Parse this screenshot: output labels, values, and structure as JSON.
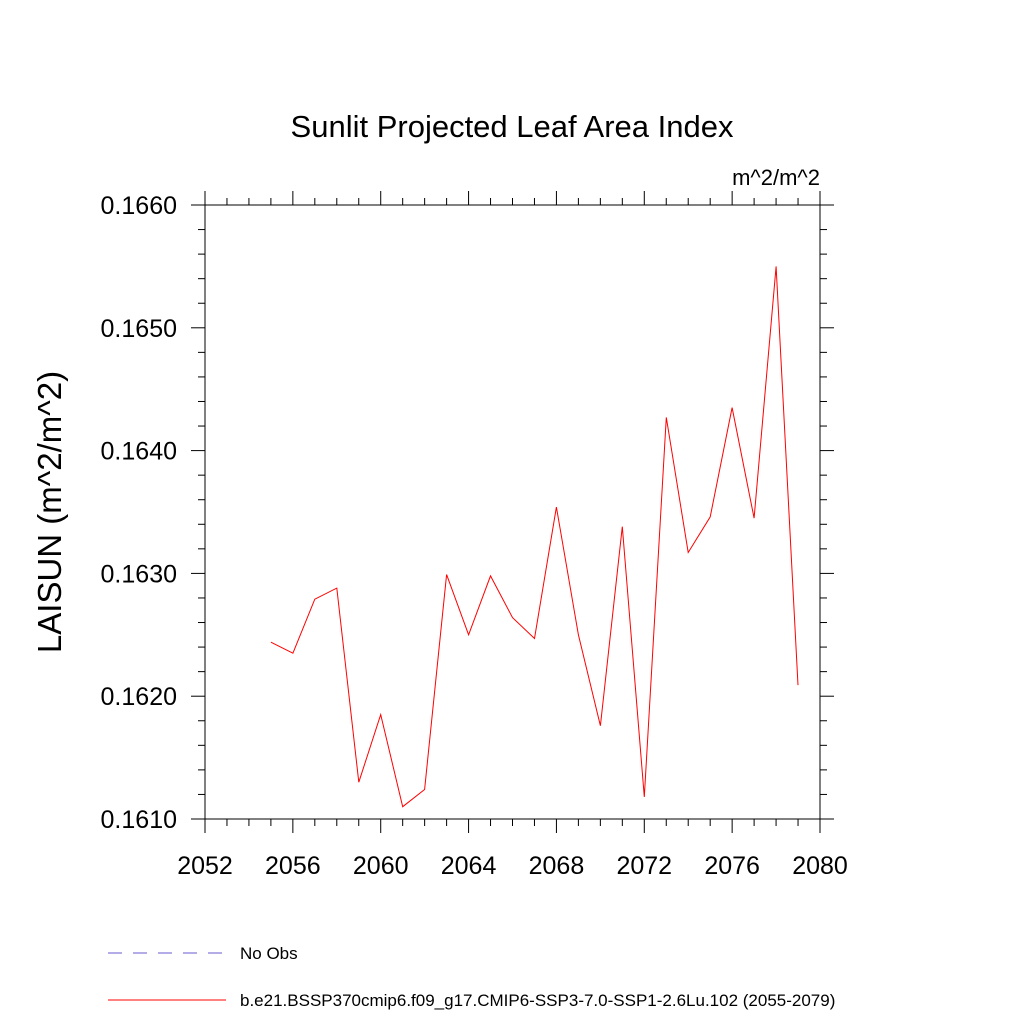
{
  "chart_data": {
    "type": "line",
    "title": "Sunlit Projected Leaf Area Index",
    "units": "m^2/m^2",
    "ylabel": "LAISUN  (m^2/m^2)",
    "xlabel": "",
    "xlim": [
      2052,
      2080
    ],
    "ylim": [
      0.161,
      0.166
    ],
    "xticks": [
      2052,
      2056,
      2060,
      2064,
      2068,
      2072,
      2076,
      2080
    ],
    "xtick_labels": [
      "2052",
      "2056",
      "2060",
      "2064",
      "2068",
      "2072",
      "2076",
      "2080"
    ],
    "yticks": [
      0.161,
      0.162,
      0.163,
      0.164,
      0.165,
      0.166
    ],
    "ytick_labels": [
      "0.1610",
      "0.1620",
      "0.1630",
      "0.1640",
      "0.1650",
      "0.1660"
    ],
    "grid": false,
    "legend_position": "bottom",
    "series": [
      {
        "name": "b.e21.BSSP370cmip6.f09_g17.CMIP6-SSP3-7.0-SSP1-2.6Lu.102 (2055-2079)",
        "color": "#ff0000",
        "x": [
          2055,
          2056,
          2057,
          2058,
          2059,
          2060,
          2061,
          2062,
          2063,
          2064,
          2065,
          2066,
          2067,
          2068,
          2069,
          2070,
          2071,
          2072,
          2073,
          2074,
          2075,
          2076,
          2077,
          2078,
          2079
        ],
        "values": [
          0.16244,
          0.16235,
          0.16279,
          0.16288,
          0.1613,
          0.16185,
          0.1611,
          0.16124,
          0.16299,
          0.1625,
          0.16298,
          0.16264,
          0.16247,
          0.16354,
          0.1625,
          0.16176,
          0.16338,
          0.16118,
          0.16427,
          0.16317,
          0.16346,
          0.16435,
          0.16345,
          0.1655,
          0.16209
        ]
      }
    ],
    "legend": [
      {
        "label": "No Obs",
        "color": "#6a5acd",
        "dash": "dashed"
      },
      {
        "label": "b.e21.BSSP370cmip6.f09_g17.CMIP6-SSP3-7.0-SSP1-2.6Lu.102 (2055-2079)",
        "color": "#ff0000",
        "dash": "solid"
      }
    ]
  }
}
